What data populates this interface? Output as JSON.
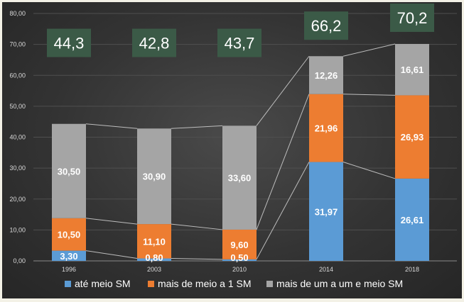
{
  "colors": {
    "seg1": "#5b9bd5",
    "seg2": "#ed7d31",
    "seg3": "#a5a5a5",
    "total_box": "#3b5a47",
    "grid": "#4f4f4f",
    "connector": "#bdbdbd"
  },
  "chart_data": {
    "type": "bar",
    "stacked": true,
    "categories": [
      "1996",
      "2003",
      "2010",
      "2014",
      "2018"
    ],
    "ylim": [
      0,
      80
    ],
    "yticks": [
      "0,00",
      "10,00",
      "20,00",
      "30,00",
      "40,00",
      "50,00",
      "60,00",
      "70,00",
      "80,00"
    ],
    "grid": true,
    "legend_position": "bottom",
    "series": [
      {
        "name": "até meio SM",
        "color": "#5b9bd5",
        "values": [
          3.3,
          0.8,
          0.5,
          31.97,
          26.61
        ],
        "labels": [
          "3,30",
          "0,80",
          "0,50",
          "31,97",
          "26,61"
        ]
      },
      {
        "name": "mais de meio a 1 SM",
        "color": "#ed7d31",
        "values": [
          10.5,
          11.1,
          9.6,
          21.96,
          26.93
        ],
        "labels": [
          "10,50",
          "11,10",
          "9,60",
          "21,96",
          "26,93"
        ]
      },
      {
        "name": "mais de um a um e meio SM",
        "color": "#a5a5a5",
        "values": [
          30.5,
          30.9,
          33.6,
          12.26,
          16.61
        ],
        "labels": [
          "30,50",
          "30,90",
          "33,60",
          "12,26",
          "16,61"
        ]
      }
    ],
    "totals": [
      "44,3",
      "42,8",
      "43,7",
      "66,2",
      "70,2"
    ],
    "total_values": [
      44.3,
      42.8,
      43.7,
      66.2,
      70.2
    ]
  }
}
